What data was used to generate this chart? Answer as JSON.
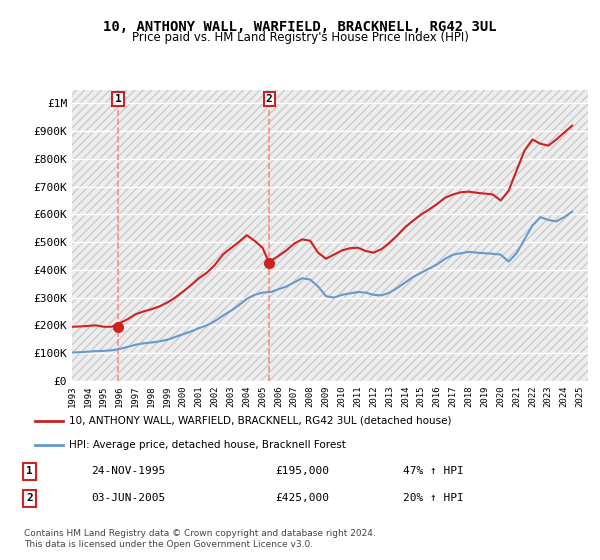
{
  "title": "10, ANTHONY WALL, WARFIELD, BRACKNELL, RG42 3UL",
  "subtitle": "Price paid vs. HM Land Registry's House Price Index (HPI)",
  "xlim": [
    1993.0,
    2025.5
  ],
  "ylim": [
    0,
    1050000
  ],
  "yticks": [
    0,
    100000,
    200000,
    300000,
    400000,
    500000,
    600000,
    700000,
    800000,
    900000,
    1000000
  ],
  "ytick_labels": [
    "£0",
    "£100K",
    "£200K",
    "£300K",
    "£400K",
    "£500K",
    "£600K",
    "£700K",
    "£800K",
    "£900K",
    "£1M"
  ],
  "xticks": [
    1993,
    1994,
    1995,
    1996,
    1997,
    1998,
    1999,
    2000,
    2001,
    2002,
    2003,
    2004,
    2005,
    2006,
    2007,
    2008,
    2009,
    2010,
    2011,
    2012,
    2013,
    2014,
    2015,
    2016,
    2017,
    2018,
    2019,
    2020,
    2021,
    2022,
    2023,
    2024,
    2025
  ],
  "hpi_color": "#6699cc",
  "price_color": "#cc2222",
  "marker_color": "#cc2222",
  "vline_color": "#ff8888",
  "grid_color": "#cccccc",
  "bg_color": "#ffffff",
  "plot_bg_color": "#f5f5f5",
  "sale1_x": 1995.9,
  "sale1_y": 195000,
  "sale1_label": "1",
  "sale1_date": "24-NOV-1995",
  "sale1_price": "£195,000",
  "sale1_hpi": "47% ↑ HPI",
  "sale2_x": 2005.42,
  "sale2_y": 425000,
  "sale2_label": "2",
  "sale2_date": "03-JUN-2005",
  "sale2_price": "£425,000",
  "sale2_hpi": "20% ↑ HPI",
  "legend_line1": "10, ANTHONY WALL, WARFIELD, BRACKNELL, RG42 3UL (detached house)",
  "legend_line2": "HPI: Average price, detached house, Bracknell Forest",
  "footer": "Contains HM Land Registry data © Crown copyright and database right 2024.\nThis data is licensed under the Open Government Licence v3.0.",
  "hpi_x": [
    1993.0,
    1993.5,
    1994.0,
    1994.5,
    1995.0,
    1995.5,
    1996.0,
    1996.5,
    1997.0,
    1997.5,
    1998.0,
    1998.5,
    1999.0,
    1999.5,
    2000.0,
    2000.5,
    2001.0,
    2001.5,
    2002.0,
    2002.5,
    2003.0,
    2003.5,
    2004.0,
    2004.5,
    2005.0,
    2005.5,
    2006.0,
    2006.5,
    2007.0,
    2007.5,
    2008.0,
    2008.5,
    2009.0,
    2009.5,
    2010.0,
    2010.5,
    2011.0,
    2011.5,
    2012.0,
    2012.5,
    2013.0,
    2013.5,
    2014.0,
    2014.5,
    2015.0,
    2015.5,
    2016.0,
    2016.5,
    2017.0,
    2017.5,
    2018.0,
    2018.5,
    2019.0,
    2019.5,
    2020.0,
    2020.5,
    2021.0,
    2021.5,
    2022.0,
    2022.5,
    2023.0,
    2023.5,
    2024.0,
    2024.5
  ],
  "hpi_y": [
    102000,
    103000,
    105000,
    107000,
    108000,
    110000,
    115000,
    122000,
    130000,
    135000,
    138000,
    142000,
    148000,
    158000,
    168000,
    178000,
    190000,
    200000,
    215000,
    235000,
    252000,
    272000,
    295000,
    310000,
    318000,
    320000,
    330000,
    340000,
    355000,
    370000,
    365000,
    340000,
    305000,
    300000,
    310000,
    315000,
    320000,
    318000,
    310000,
    308000,
    318000,
    335000,
    355000,
    375000,
    390000,
    405000,
    420000,
    440000,
    455000,
    460000,
    465000,
    462000,
    460000,
    458000,
    455000,
    430000,
    460000,
    510000,
    560000,
    590000,
    580000,
    575000,
    590000,
    610000
  ],
  "price_x": [
    1993.0,
    1993.5,
    1994.0,
    1994.5,
    1995.0,
    1995.5,
    1996.0,
    1996.5,
    1997.0,
    1997.5,
    1998.0,
    1998.5,
    1999.0,
    1999.5,
    2000.0,
    2000.5,
    2001.0,
    2001.5,
    2002.0,
    2002.5,
    2003.0,
    2003.5,
    2004.0,
    2004.5,
    2005.0,
    2005.42,
    2005.5,
    2006.0,
    2006.5,
    2007.0,
    2007.5,
    2008.0,
    2008.5,
    2009.0,
    2009.5,
    2010.0,
    2010.5,
    2011.0,
    2011.5,
    2012.0,
    2012.5,
    2013.0,
    2013.5,
    2014.0,
    2014.5,
    2015.0,
    2015.5,
    2016.0,
    2016.5,
    2017.0,
    2017.5,
    2018.0,
    2018.5,
    2019.0,
    2019.5,
    2020.0,
    2020.5,
    2021.0,
    2021.5,
    2022.0,
    2022.5,
    2023.0,
    2023.5,
    2024.0,
    2024.5
  ],
  "price_y": [
    195000,
    196000,
    198000,
    200000,
    195000,
    195000,
    208000,
    222000,
    240000,
    250000,
    258000,
    268000,
    282000,
    300000,
    322000,
    345000,
    370000,
    390000,
    418000,
    455000,
    478000,
    500000,
    525000,
    505000,
    480000,
    425000,
    432000,
    450000,
    470000,
    495000,
    510000,
    505000,
    462000,
    440000,
    455000,
    470000,
    478000,
    480000,
    468000,
    462000,
    475000,
    498000,
    525000,
    555000,
    578000,
    600000,
    618000,
    638000,
    660000,
    672000,
    680000,
    682000,
    678000,
    675000,
    672000,
    650000,
    685000,
    758000,
    830000,
    870000,
    855000,
    848000,
    870000,
    895000,
    920000
  ]
}
